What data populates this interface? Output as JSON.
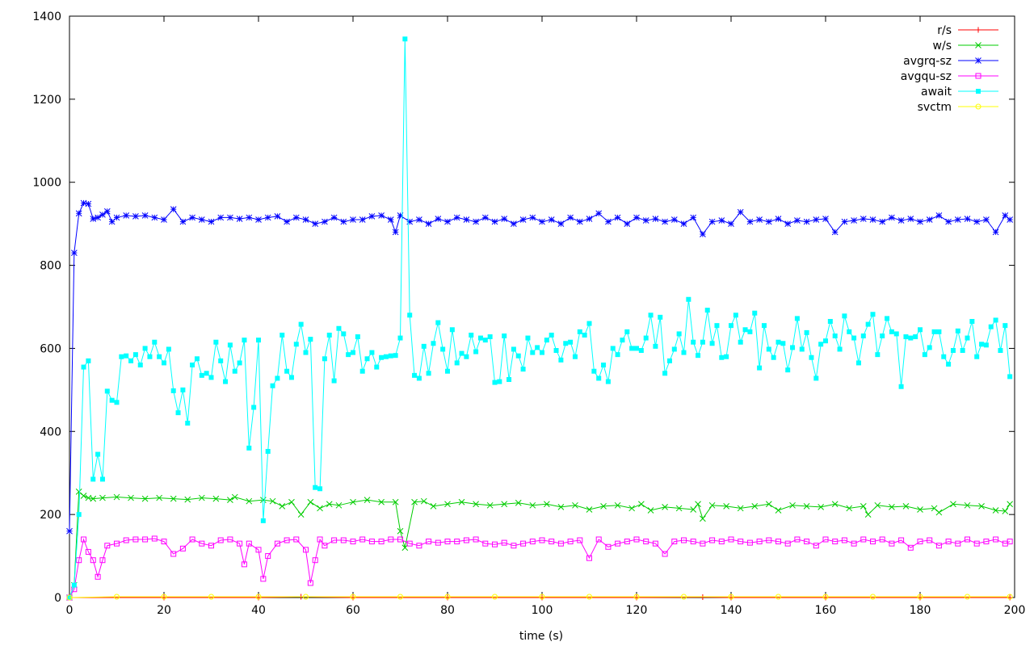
{
  "chart_data": {
    "type": "line",
    "title": "",
    "xlabel": "time (s)",
    "ylabel": "",
    "xlim": [
      0,
      200
    ],
    "ylim": [
      0,
      1400
    ],
    "xticks": [
      0,
      20,
      40,
      60,
      80,
      100,
      120,
      140,
      160,
      180,
      200
    ],
    "yticks": [
      0,
      200,
      400,
      600,
      800,
      1000,
      1200,
      1400
    ],
    "grid": false,
    "legend": "top-right",
    "series": [
      {
        "name": "r/s",
        "color": "#ff0000",
        "marker": "plus",
        "x": [
          0,
          20,
          40,
          49,
          60,
          80,
          100,
          120,
          134,
          140,
          160,
          180,
          199
        ],
        "y": [
          0,
          0,
          0,
          2,
          0,
          0,
          0,
          0,
          1,
          0,
          0,
          0,
          0
        ]
      },
      {
        "name": "w/s",
        "color": "#00cc00",
        "marker": "x",
        "x": [
          0,
          1,
          2,
          3,
          4,
          5,
          7,
          10,
          13,
          16,
          19,
          22,
          25,
          28,
          31,
          34,
          35,
          38,
          41,
          43,
          45,
          47,
          49,
          51,
          53,
          55,
          57,
          60,
          63,
          66,
          69,
          70,
          71,
          73,
          75,
          77,
          80,
          83,
          86,
          89,
          92,
          95,
          98,
          101,
          104,
          107,
          110,
          113,
          116,
          119,
          121,
          123,
          126,
          129,
          132,
          133,
          134,
          136,
          139,
          142,
          145,
          148,
          150,
          153,
          156,
          159,
          162,
          165,
          168,
          169,
          171,
          174,
          177,
          180,
          183,
          184,
          187,
          190,
          193,
          196,
          198,
          199
        ],
        "y": [
          0,
          30,
          255,
          245,
          240,
          238,
          240,
          242,
          240,
          238,
          240,
          238,
          236,
          240,
          238,
          235,
          242,
          232,
          235,
          232,
          220,
          230,
          200,
          230,
          215,
          225,
          222,
          230,
          235,
          230,
          230,
          160,
          120,
          230,
          232,
          220,
          225,
          230,
          225,
          222,
          225,
          228,
          222,
          225,
          218,
          222,
          212,
          220,
          222,
          215,
          225,
          210,
          218,
          215,
          212,
          225,
          190,
          222,
          220,
          215,
          220,
          225,
          210,
          222,
          220,
          218,
          225,
          215,
          220,
          200,
          222,
          218,
          220,
          212,
          215,
          205,
          225,
          222,
          220,
          210,
          208,
          225
        ]
      },
      {
        "name": "avgrq-sz",
        "color": "#0000ff",
        "marker": "star",
        "x": [
          0,
          1,
          2,
          3,
          4,
          5,
          6,
          7,
          8,
          9,
          10,
          12,
          14,
          16,
          18,
          20,
          22,
          24,
          26,
          28,
          30,
          32,
          34,
          36,
          38,
          40,
          42,
          44,
          46,
          48,
          50,
          52,
          54,
          56,
          58,
          60,
          62,
          64,
          66,
          68,
          69,
          70,
          72,
          74,
          76,
          78,
          80,
          82,
          84,
          86,
          88,
          90,
          92,
          94,
          96,
          98,
          100,
          102,
          104,
          106,
          108,
          110,
          112,
          114,
          116,
          118,
          120,
          122,
          124,
          126,
          128,
          130,
          132,
          134,
          136,
          138,
          140,
          142,
          144,
          146,
          148,
          150,
          152,
          154,
          156,
          158,
          160,
          162,
          164,
          166,
          168,
          170,
          172,
          174,
          176,
          178,
          180,
          182,
          184,
          186,
          188,
          190,
          192,
          194,
          196,
          198,
          199
        ],
        "y": [
          160,
          830,
          925,
          950,
          948,
          912,
          915,
          922,
          930,
          905,
          915,
          920,
          918,
          920,
          915,
          910,
          935,
          905,
          915,
          910,
          905,
          915,
          915,
          912,
          915,
          910,
          915,
          918,
          905,
          915,
          910,
          900,
          905,
          915,
          905,
          910,
          910,
          918,
          920,
          910,
          880,
          920,
          905,
          910,
          900,
          912,
          905,
          915,
          910,
          905,
          915,
          905,
          912,
          900,
          910,
          915,
          905,
          910,
          900,
          915,
          905,
          912,
          925,
          905,
          915,
          900,
          915,
          908,
          912,
          905,
          910,
          900,
          915,
          875,
          905,
          908,
          900,
          928,
          905,
          910,
          905,
          912,
          900,
          908,
          905,
          910,
          912,
          880,
          905,
          908,
          912,
          910,
          905,
          915,
          908,
          912,
          905,
          910,
          920,
          905,
          910,
          912,
          905,
          910,
          880,
          920,
          910
        ]
      },
      {
        "name": "avgqu-sz",
        "color": "#ff00ff",
        "marker": "square",
        "x": [
          0,
          1,
          2,
          3,
          4,
          5,
          6,
          7,
          8,
          10,
          12,
          14,
          16,
          18,
          20,
          22,
          24,
          26,
          28,
          30,
          32,
          34,
          36,
          37,
          38,
          40,
          41,
          42,
          44,
          46,
          48,
          50,
          51,
          52,
          53,
          54,
          56,
          58,
          60,
          62,
          64,
          66,
          68,
          70,
          72,
          74,
          76,
          78,
          80,
          82,
          84,
          86,
          88,
          90,
          92,
          94,
          96,
          98,
          100,
          102,
          104,
          106,
          108,
          110,
          112,
          114,
          116,
          118,
          120,
          122,
          124,
          126,
          128,
          130,
          132,
          134,
          136,
          138,
          140,
          142,
          144,
          146,
          148,
          150,
          152,
          154,
          156,
          158,
          160,
          162,
          164,
          166,
          168,
          170,
          172,
          174,
          176,
          178,
          180,
          182,
          184,
          186,
          188,
          190,
          192,
          194,
          196,
          198,
          199
        ],
        "y": [
          0,
          20,
          90,
          140,
          110,
          90,
          50,
          90,
          125,
          130,
          138,
          140,
          140,
          142,
          135,
          105,
          118,
          140,
          130,
          125,
          138,
          140,
          130,
          80,
          130,
          115,
          45,
          100,
          130,
          138,
          140,
          115,
          35,
          90,
          140,
          125,
          138,
          138,
          135,
          140,
          135,
          135,
          140,
          140,
          130,
          125,
          135,
          132,
          135,
          135,
          138,
          140,
          130,
          128,
          132,
          125,
          130,
          135,
          138,
          135,
          130,
          135,
          138,
          95,
          140,
          122,
          130,
          135,
          140,
          135,
          130,
          105,
          135,
          138,
          135,
          130,
          138,
          135,
          140,
          135,
          132,
          135,
          138,
          135,
          130,
          140,
          135,
          125,
          140,
          135,
          138,
          130,
          140,
          135,
          140,
          130,
          138,
          120,
          135,
          138,
          125,
          135,
          130,
          140,
          130,
          135,
          140,
          130,
          135
        ]
      },
      {
        "name": "await",
        "color": "#00ffff",
        "marker": "filled-square",
        "x": [
          0,
          1,
          2,
          3,
          4,
          5,
          6,
          7,
          8,
          9,
          10,
          11,
          12,
          13,
          14,
          15,
          16,
          17,
          18,
          19,
          20,
          21,
          22,
          23,
          24,
          25,
          26,
          27,
          28,
          29,
          30,
          31,
          32,
          33,
          34,
          35,
          36,
          37,
          38,
          39,
          40,
          41,
          42,
          43,
          44,
          45,
          46,
          47,
          48,
          49,
          50,
          51,
          52,
          53,
          54,
          55,
          56,
          57,
          58,
          59,
          60,
          61,
          62,
          63,
          64,
          65,
          66,
          67,
          68,
          69,
          70,
          71,
          72,
          73,
          74,
          75,
          76,
          77,
          78,
          79,
          80,
          81,
          82,
          83,
          84,
          85,
          86,
          87,
          88,
          89,
          90,
          91,
          92,
          93,
          94,
          95,
          96,
          97,
          98,
          99,
          100,
          101,
          102,
          103,
          104,
          105,
          106,
          107,
          108,
          109,
          110,
          111,
          112,
          113,
          114,
          115,
          116,
          117,
          118,
          119,
          120,
          121,
          122,
          123,
          124,
          125,
          126,
          127,
          128,
          129,
          130,
          131,
          132,
          133,
          134,
          135,
          136,
          137,
          138,
          139,
          140,
          141,
          142,
          143,
          144,
          145,
          146,
          147,
          148,
          149,
          150,
          151,
          152,
          153,
          154,
          155,
          156,
          157,
          158,
          159,
          160,
          161,
          162,
          163,
          164,
          165,
          166,
          167,
          168,
          169,
          170,
          171,
          172,
          173,
          174,
          175,
          176,
          177,
          178,
          179,
          180,
          181,
          182,
          183,
          184,
          185,
          186,
          187,
          188,
          189,
          190,
          191,
          192,
          193,
          194,
          195,
          196,
          197,
          198,
          199
        ],
        "y": [
          0,
          30,
          200,
          555,
          570,
          285,
          345,
          285,
          497,
          475,
          470,
          580,
          582,
          570,
          585,
          560,
          600,
          580,
          615,
          580,
          565,
          598,
          498,
          445,
          500,
          420,
          560,
          575,
          535,
          540,
          530,
          615,
          570,
          520,
          608,
          545,
          565,
          620,
          360,
          458,
          620,
          185,
          352,
          510,
          528,
          632,
          545,
          530,
          610,
          658,
          590,
          622,
          265,
          262,
          575,
          632,
          522,
          648,
          635,
          585,
          590,
          628,
          545,
          575,
          590,
          555,
          578,
          580,
          582,
          583,
          625,
          1345,
          680,
          535,
          528,
          605,
          540,
          612,
          662,
          598,
          545,
          645,
          565,
          588,
          580,
          632,
          592,
          625,
          620,
          628,
          518,
          520,
          630,
          525,
          598,
          582,
          550,
          625,
          590,
          602,
          590,
          620,
          632,
          595,
          572,
          612,
          615,
          580,
          640,
          632,
          660,
          545,
          528,
          560,
          520,
          600,
          585,
          620,
          640,
          600,
          600,
          595,
          625,
          680,
          605,
          675,
          540,
          570,
          598,
          635,
          590,
          718,
          615,
          583,
          615,
          692,
          612,
          655,
          578,
          580,
          655,
          680,
          615,
          645,
          640,
          685,
          553,
          655,
          598,
          578,
          615,
          612,
          548,
          602,
          672,
          598,
          638,
          578,
          528,
          610,
          618,
          665,
          630,
          598,
          678,
          640,
          625,
          565,
          630,
          658,
          682,
          585,
          630,
          672,
          640,
          635,
          508,
          628,
          625,
          628,
          645,
          585,
          602,
          640,
          640,
          580,
          562,
          595,
          642,
          595,
          625,
          665,
          580,
          610,
          608,
          652,
          668,
          595,
          655,
          532
        ]
      },
      {
        "name": "svctm",
        "color": "#ffff00",
        "marker": "circle",
        "x": [
          0,
          10,
          20,
          30,
          40,
          50,
          60,
          70,
          80,
          90,
          100,
          110,
          120,
          130,
          140,
          150,
          160,
          170,
          180,
          190,
          199
        ],
        "y": [
          0,
          2,
          2,
          2,
          2,
          2,
          2,
          2,
          2,
          2,
          2,
          2,
          2,
          2,
          2,
          2,
          2,
          2,
          2,
          2,
          2
        ]
      }
    ]
  }
}
